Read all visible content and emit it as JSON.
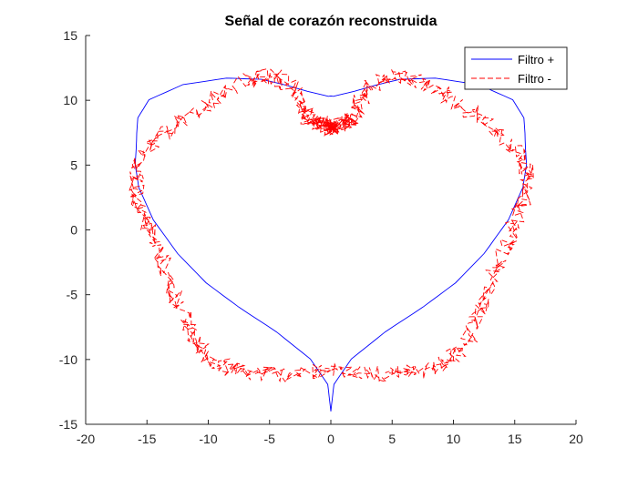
{
  "chart_data": {
    "type": "line",
    "title": "Señal de corazón reconstruida",
    "xlabel": "",
    "ylabel": "",
    "xlim": [
      -20,
      20
    ],
    "ylim": [
      -15,
      15
    ],
    "xticks": [
      -20,
      -15,
      -10,
      -5,
      0,
      5,
      10,
      15,
      20
    ],
    "yticks": [
      -15,
      -10,
      -5,
      0,
      5,
      10,
      15
    ],
    "xtick_labels": [
      "-20",
      "-15",
      "-10",
      "-5",
      "0",
      "5",
      "10",
      "15",
      "20"
    ],
    "ytick_labels": [
      "-15",
      "-10",
      "-5",
      "0",
      "5",
      "10",
      "15"
    ],
    "grid": false,
    "legend_position": "top-right",
    "series": [
      {
        "name": "Filtro +",
        "color": "#0000ff",
        "style": "solid",
        "x": [
          0,
          0.25,
          1.67,
          4.42,
          7.51,
          10.18,
          12.5,
          14.48,
          15.67,
          15.96,
          15.87,
          15.84,
          15.75,
          14.84,
          12.07,
          8.52,
          5.66,
          3.69,
          1.91,
          0.19,
          0,
          -0.19,
          -1.91,
          -3.69,
          -5.66,
          -8.52,
          -12.07,
          -14.84,
          -15.75,
          -15.84,
          -15.87,
          -15.96,
          -15.67,
          -14.48,
          -12.5,
          -10.18,
          -7.51,
          -4.42,
          -1.67,
          -0.25,
          0
        ],
        "y": [
          -14,
          -11.92,
          -9.96,
          -7.88,
          -5.96,
          -4.08,
          -1.83,
          0.77,
          3.29,
          5.04,
          6.33,
          7.46,
          8.64,
          10.04,
          11.21,
          11.71,
          11.62,
          11.18,
          10.69,
          10.31,
          10.33,
          10.31,
          10.69,
          11.18,
          11.62,
          11.71,
          11.21,
          10.04,
          8.64,
          7.46,
          6.33,
          5.04,
          3.29,
          0.77,
          -1.83,
          -4.08,
          -5.96,
          -7.88,
          -9.96,
          -11.92,
          -14
        ]
      },
      {
        "name": "Filtro -",
        "color": "#ff0000",
        "style": "dashed",
        "x": [
          0,
          1.99,
          3.92,
          5.71,
          7.31,
          8.68,
          9.82,
          10.75,
          11.56,
          12.29,
          13.0,
          13.73,
          14.48,
          15.17,
          15.74,
          16.0,
          15.89,
          15.33,
          14.29,
          12.84,
          11.12,
          9.26,
          7.45,
          5.82,
          4.48,
          3.44,
          2.72,
          2.21,
          1.84,
          1.51,
          1.13,
          0.7,
          0.28,
          0.02,
          0,
          0,
          -0.02,
          -0.28,
          -0.7,
          -1.13,
          -1.51,
          -1.84,
          -2.21,
          -2.72,
          -3.44,
          -4.48,
          -5.82,
          -7.45,
          -9.26,
          -11.12,
          -12.84,
          -14.29,
          -15.33,
          -15.89,
          -16.0,
          -15.74,
          -15.17,
          -14.48,
          -13.73,
          -13.0,
          -12.29,
          -11.56,
          -10.75,
          -9.82,
          -8.68,
          -7.31,
          -5.71,
          -3.92,
          -1.99,
          0
        ],
        "y": [
          -11.0,
          -11.04,
          -11.08,
          -11.09,
          -10.97,
          -10.63,
          -9.98,
          -9.0,
          -7.69,
          -6.12,
          -4.39,
          -2.59,
          -0.84,
          0.81,
          2.3,
          3.64,
          4.84,
          5.95,
          7.02,
          8.11,
          9.22,
          10.3,
          11.22,
          11.8,
          11.88,
          11.36,
          10.3,
          9.33,
          8.7,
          8.4,
          8.27,
          8.18,
          8.06,
          7.9,
          7.9,
          7.9,
          7.9,
          8.06,
          8.18,
          8.27,
          8.4,
          8.7,
          9.33,
          10.3,
          11.36,
          11.88,
          11.8,
          11.22,
          10.3,
          9.22,
          8.11,
          7.02,
          5.95,
          4.84,
          3.64,
          2.3,
          0.81,
          -0.84,
          -2.59,
          -4.39,
          -6.12,
          -7.69,
          -9.0,
          -9.98,
          -10.63,
          -10.97,
          -11.09,
          -11.08,
          -11.04,
          -11.0
        ]
      }
    ]
  }
}
